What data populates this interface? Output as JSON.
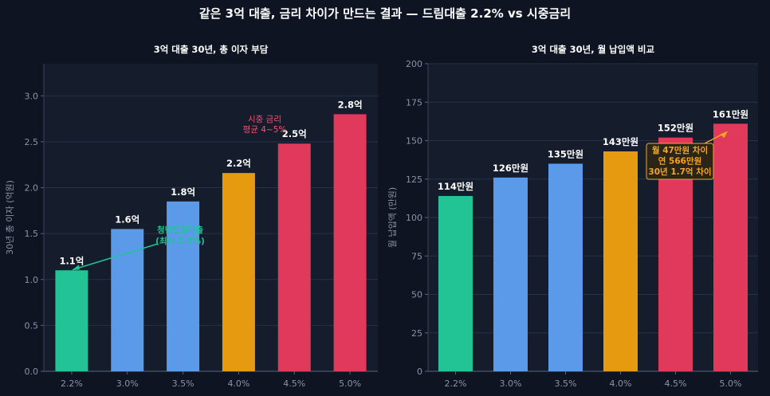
{
  "figure": {
    "title": "같은 3억 대출, 금리 차이가 만드는 결과 — 드림대출 2.2% vs 시중금리"
  },
  "colors": {
    "background": "#0e1422",
    "panel": "#151c2b",
    "green": "#22c495",
    "blue": "#5a9ae8",
    "orange": "#e59a10",
    "red": "#e0395c",
    "annotation_red": "#f2546e",
    "annotation_orange": "#f5a623"
  },
  "chart_data": [
    {
      "type": "bar",
      "title": "3억 대출 30년, 총 이자 부담",
      "ylabel": "30년 총 이자 (억원)",
      "xlabel": "",
      "categories": [
        "2.2%",
        "3.0%",
        "3.5%",
        "4.0%",
        "4.5%",
        "5.0%"
      ],
      "values": [
        1.1,
        1.55,
        1.85,
        2.16,
        2.48,
        2.8
      ],
      "value_labels": [
        "1.1억",
        "1.6억",
        "1.8억",
        "2.2억",
        "2.5억",
        "2.8억"
      ],
      "bar_colors": [
        "green",
        "blue",
        "blue",
        "orange",
        "red",
        "red"
      ],
      "ylim": [
        0,
        3.35
      ],
      "yticks": [
        0.0,
        0.5,
        1.0,
        1.5,
        2.0,
        2.5,
        3.0
      ],
      "ytick_labels": [
        "0.0",
        "0.5",
        "1.0",
        "1.5",
        "2.0",
        "2.5",
        "3.0"
      ],
      "grid": true,
      "annotations": [
        {
          "lines": [
            "청년드림대출",
            "(최저 2.2%)"
          ],
          "color": "green",
          "arrow_to_category": 0,
          "arrow_to_value": 1.1
        },
        {
          "lines": [
            "시중 금리",
            "평균 4~5%"
          ],
          "color": "annotation_red"
        }
      ]
    },
    {
      "type": "bar",
      "title": "3억 대출 30년, 월 납입액 비교",
      "ylabel": "월 납입액 (만원)",
      "xlabel": "",
      "categories": [
        "2.2%",
        "3.0%",
        "3.5%",
        "4.0%",
        "4.5%",
        "5.0%"
      ],
      "values": [
        114,
        126,
        135,
        143,
        152,
        161
      ],
      "value_labels": [
        "114만원",
        "126만원",
        "135만원",
        "143만원",
        "152만원",
        "161만원"
      ],
      "bar_colors": [
        "green",
        "blue",
        "blue",
        "orange",
        "red",
        "red"
      ],
      "ylim": [
        0,
        200
      ],
      "yticks": [
        0,
        25,
        50,
        75,
        100,
        125,
        150,
        175,
        200
      ],
      "ytick_labels": [
        "0",
        "25",
        "50",
        "75",
        "100",
        "125",
        "150",
        "175",
        "200"
      ],
      "grid": true,
      "annotations": [
        {
          "lines": [
            "월 47만원 차이",
            "연 566만원",
            "30년 1.7억 차이"
          ],
          "color": "annotation_orange",
          "arrow_to_category": 5,
          "arrow_to_value": 161
        }
      ]
    }
  ]
}
